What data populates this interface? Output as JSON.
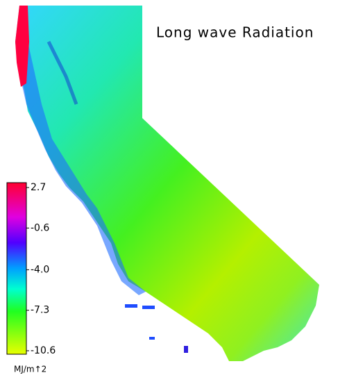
{
  "map": {
    "title": "Long wave Radiation",
    "colorbar": {
      "clim": [
        -10.6,
        2.7
      ],
      "ticks": [
        2.7,
        -0.6,
        {
          "value": -4,
          "label": "-4.0"
        },
        -7.3,
        -10.6
      ],
      "unit": "MJ/m↑2"
    }
  }
}
